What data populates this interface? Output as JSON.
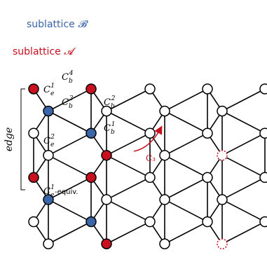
{
  "legend": {
    "b_text": "sublattice ",
    "b_symbol": "𝓑",
    "a_text": "sublattice ",
    "a_symbol": "𝓐"
  },
  "labels": {
    "ce1": {
      "base": "C",
      "sub": "e",
      "sup": "1"
    },
    "ce2": {
      "base": "C",
      "sub": "e",
      "sup": "2"
    },
    "ce1_equiv": {
      "base": "C",
      "sub": "e",
      "sup": "1",
      "suffix": "-equiv."
    },
    "cb1": {
      "base": "C",
      "sub": "b",
      "sup": "1"
    },
    "cb2": {
      "base": "C",
      "sub": "b",
      "sup": "2"
    },
    "cb3": {
      "base": "C",
      "sub": "b",
      "sup": "3"
    },
    "cb4": {
      "base": "C",
      "sub": "b",
      "sup": "4"
    },
    "c3": "C₃",
    "edge": "edge"
  },
  "colors": {
    "sublattice_b": "#3a65a8",
    "sublattice_a": "#c8101e",
    "lattice_line": "#000000",
    "node_fill": "#ffffff",
    "arrow": "#c8101e"
  }
}
